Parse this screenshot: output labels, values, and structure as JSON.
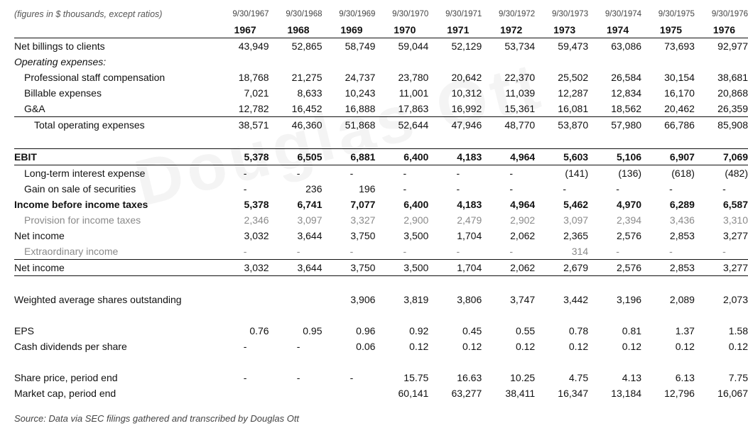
{
  "header": {
    "units_note": "(figures in $ thousands, except ratios)",
    "period_dates": [
      "9/30/1967",
      "9/30/1968",
      "9/30/1969",
      "9/30/1970",
      "9/30/1971",
      "9/30/1972",
      "9/30/1973",
      "9/30/1974",
      "9/30/1975",
      "9/30/1976"
    ],
    "years": [
      "1967",
      "1968",
      "1969",
      "1970",
      "1971",
      "1972",
      "1973",
      "1974",
      "1975",
      "1976"
    ]
  },
  "rows": [
    {
      "label": "Net billings to clients",
      "values": [
        "43,949",
        "52,865",
        "58,749",
        "59,044",
        "52,129",
        "53,734",
        "59,473",
        "63,086",
        "73,693",
        "92,977"
      ]
    },
    {
      "label": "Operating expenses:",
      "values": [
        "",
        "",
        "",
        "",
        "",
        "",
        "",
        "",
        "",
        ""
      ]
    },
    {
      "label": "Professional staff compensation",
      "values": [
        "18,768",
        "21,275",
        "24,737",
        "23,780",
        "20,642",
        "22,370",
        "25,502",
        "26,584",
        "30,154",
        "38,681"
      ]
    },
    {
      "label": "Billable expenses",
      "values": [
        "7,021",
        "8,633",
        "10,243",
        "11,001",
        "10,312",
        "11,039",
        "12,287",
        "12,834",
        "16,170",
        "20,868"
      ]
    },
    {
      "label": "G&A",
      "values": [
        "12,782",
        "16,452",
        "16,888",
        "17,863",
        "16,992",
        "15,361",
        "16,081",
        "18,562",
        "20,462",
        "26,359"
      ]
    },
    {
      "label": "Total operating expenses",
      "values": [
        "38,571",
        "46,360",
        "51,868",
        "52,644",
        "47,946",
        "48,770",
        "53,870",
        "57,980",
        "66,786",
        "85,908"
      ]
    },
    {
      "label": "",
      "values": [
        "",
        "",
        "",
        "",
        "",
        "",
        "",
        "",
        "",
        ""
      ]
    },
    {
      "label": "EBIT",
      "values": [
        "5,378",
        "6,505",
        "6,881",
        "6,400",
        "4,183",
        "4,964",
        "5,603",
        "5,106",
        "6,907",
        "7,069"
      ]
    },
    {
      "label": "Long-term interest expense",
      "values": [
        "-",
        "-",
        "-",
        "-",
        "-",
        "-",
        "(141)",
        "(136)",
        "(618)",
        "(482)"
      ]
    },
    {
      "label": "Gain on sale of securities",
      "values": [
        "-",
        "236",
        "196",
        "-",
        "-",
        "-",
        "-",
        "-",
        "-",
        "-"
      ]
    },
    {
      "label": "Income before income taxes",
      "values": [
        "5,378",
        "6,741",
        "7,077",
        "6,400",
        "4,183",
        "4,964",
        "5,462",
        "4,970",
        "6,289",
        "6,587"
      ]
    },
    {
      "label": "Provision for income taxes",
      "values": [
        "2,346",
        "3,097",
        "3,327",
        "2,900",
        "2,479",
        "2,902",
        "3,097",
        "2,394",
        "3,436",
        "3,310"
      ]
    },
    {
      "label": "Net income",
      "values": [
        "3,032",
        "3,644",
        "3,750",
        "3,500",
        "1,704",
        "2,062",
        "2,365",
        "2,576",
        "2,853",
        "3,277"
      ]
    },
    {
      "label": "Extraordinary income",
      "values": [
        "-",
        "-",
        "-",
        "-",
        "-",
        "-",
        "314",
        "-",
        "-",
        "-"
      ]
    },
    {
      "label": "Net income",
      "values": [
        "3,032",
        "3,644",
        "3,750",
        "3,500",
        "1,704",
        "2,062",
        "2,679",
        "2,576",
        "2,853",
        "3,277"
      ]
    },
    {
      "label": "",
      "values": [
        "",
        "",
        "",
        "",
        "",
        "",
        "",
        "",
        "",
        ""
      ]
    },
    {
      "label": "Weighted average shares outstanding",
      "values": [
        "",
        "",
        "3,906",
        "3,819",
        "3,806",
        "3,747",
        "3,442",
        "3,196",
        "2,089",
        "2,073"
      ]
    },
    {
      "label": "",
      "values": [
        "",
        "",
        "",
        "",
        "",
        "",
        "",
        "",
        "",
        ""
      ]
    },
    {
      "label": "EPS",
      "values": [
        "0.76",
        "0.95",
        "0.96",
        "0.92",
        "0.45",
        "0.55",
        "0.78",
        "0.81",
        "1.37",
        "1.58"
      ]
    },
    {
      "label": "Cash dividends per share",
      "values": [
        "-",
        "-",
        "0.06",
        "0.12",
        "0.12",
        "0.12",
        "0.12",
        "0.12",
        "0.12",
        "0.12"
      ]
    },
    {
      "label": "",
      "values": [
        "",
        "",
        "",
        "",
        "",
        "",
        "",
        "",
        "",
        ""
      ]
    },
    {
      "label": "Share price, period end",
      "values": [
        "-",
        "-",
        "-",
        "15.75",
        "16.63",
        "10.25",
        "4.75",
        "4.13",
        "6.13",
        "7.75"
      ]
    },
    {
      "label": "Market cap, period end",
      "values": [
        "",
        "",
        "",
        "60,141",
        "63,277",
        "38,411",
        "16,347",
        "13,184",
        "12,796",
        "16,067"
      ]
    }
  ],
  "source": "Source: Data via SEC filings gathered and transcribed by Douglas Ott",
  "watermark": "Douglas Ott"
}
